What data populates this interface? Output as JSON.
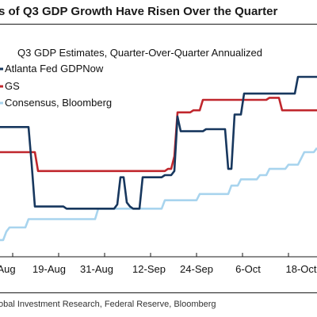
{
  "header": {
    "title": "s of Q3 GDP Growth Have Risen Over the Quarter"
  },
  "footer": {
    "source": "obal Investment Research, Federal Reserve, Bloomberg"
  },
  "chart_data": {
    "type": "line",
    "title": "Q3 GDP Estimates, Quarter-Over-Quarter Annualized",
    "x_tick_labels": [
      "Aug",
      "19-Aug",
      "31-Aug",
      "12-Sep",
      "24-Sep",
      "6-Oct",
      "18-Oct"
    ],
    "x": [
      0,
      4,
      8,
      12,
      16,
      20,
      24,
      28,
      32,
      36,
      40,
      44,
      48,
      52,
      56,
      60,
      64,
      68,
      72,
      76,
      80,
      84,
      88,
      92,
      96,
      100,
      104,
      108,
      112,
      116,
      120,
      124,
      128,
      132,
      136,
      140,
      144,
      148,
      152,
      156,
      160,
      164,
      168,
      172,
      176,
      180,
      184,
      188,
      192,
      196,
      200,
      204,
      208,
      212,
      216,
      220,
      224,
      228,
      232,
      236,
      240,
      244,
      248,
      252,
      256,
      260,
      264,
      268,
      272,
      276,
      280,
      284,
      288,
      292,
      296,
      300,
      304,
      308,
      312,
      316,
      320,
      324,
      328,
      332,
      336,
      340,
      344,
      348,
      352,
      356,
      360,
      364,
      368,
      372,
      376,
      380,
      384,
      388,
      392,
      396,
      400
    ],
    "ylim": [
      0,
      10
    ],
    "grid": false,
    "legend_position": "top-left",
    "series": [
      {
        "name": "Atlanta Fed GDPNow",
        "color": "#17375e",
        "values": [
          6.2,
          6.2,
          6.2,
          6.2,
          6.2,
          6.2,
          6.2,
          6.2,
          6.2,
          6.2,
          4.4,
          2.4,
          2.4,
          2.4,
          2.4,
          2.4,
          2.4,
          2.4,
          2.4,
          2.4,
          2.4,
          2.3,
          2.3,
          2.3,
          2.3,
          2.3,
          2.3,
          2.3,
          2.3,
          2.3,
          2.3,
          2.3,
          2.3,
          2.3,
          2.3,
          2.3,
          2.3,
          2.5,
          3.8,
          3.8,
          2.6,
          2.4,
          2.3,
          2.3,
          2.3,
          3.8,
          3.8,
          3.8,
          3.8,
          3.8,
          3.8,
          3.8,
          3.9,
          3.9,
          3.9,
          4.1,
          6.7,
          6.0,
          6.0,
          6.0,
          6.0,
          6.0,
          6.0,
          6.0,
          6.0,
          6.1,
          6.1,
          6.1,
          6.1,
          6.1,
          6.1,
          6.1,
          4.2,
          4.2,
          6.8,
          6.8,
          6.8,
          7.8,
          7.8,
          7.8,
          7.8,
          7.8,
          7.8,
          7.8,
          7.8,
          7.8,
          7.8,
          7.8,
          7.8,
          7.8,
          7.8,
          7.8,
          7.8,
          7.8,
          8.6,
          8.6,
          8.6,
          8.6,
          8.6,
          8.6,
          8.6
        ]
      },
      {
        "name": "GS",
        "color": "#c0272d",
        "values": [
          5.0,
          5.0,
          5.0,
          5.0,
          5.0,
          5.0,
          5.0,
          5.0,
          5.0,
          5.0,
          5.0,
          5.0,
          4.1,
          4.1,
          4.1,
          4.1,
          4.1,
          4.1,
          4.1,
          4.1,
          4.1,
          4.1,
          4.1,
          4.1,
          4.1,
          4.1,
          4.1,
          4.1,
          4.1,
          4.1,
          4.1,
          4.1,
          4.1,
          4.1,
          4.1,
          4.1,
          4.1,
          4.1,
          4.1,
          4.1,
          4.1,
          4.1,
          4.1,
          4.1,
          4.1,
          4.1,
          4.1,
          4.1,
          4.1,
          4.1,
          4.1,
          4.1,
          4.1,
          4.2,
          4.2,
          4.8,
          6.9,
          6.9,
          6.9,
          6.9,
          6.9,
          7.0,
          7.0,
          7.0,
          7.5,
          7.5,
          7.5,
          7.5,
          7.5,
          7.5,
          7.5,
          7.5,
          7.5,
          7.5,
          7.5,
          7.5,
          7.5,
          7.5,
          7.5,
          7.5,
          7.5,
          7.5,
          7.5,
          7.5,
          7.5,
          7.6,
          7.6,
          7.6,
          7.6,
          7.0,
          7.0,
          7.0,
          7.0,
          7.0,
          7.0,
          7.0,
          7.0,
          7.0,
          7.0,
          7.0,
          7.0
        ]
      },
      {
        "name": "Consensus, Bloomberg",
        "color": "#a8d4ee",
        "values": [
          0.8,
          0.8,
          1.2,
          1.4,
          1.4,
          1.4,
          1.4,
          1.4,
          1.4,
          1.8,
          1.8,
          1.8,
          1.8,
          1.8,
          1.8,
          1.8,
          1.8,
          1.8,
          1.8,
          1.8,
          1.8,
          1.8,
          1.8,
          1.8,
          1.8,
          1.8,
          1.8,
          1.8,
          1.8,
          1.8,
          1.8,
          2.3,
          2.3,
          2.3,
          2.3,
          2.3,
          2.3,
          2.3,
          2.3,
          2.3,
          2.3,
          2.3,
          2.3,
          2.3,
          2.3,
          2.3,
          2.3,
          2.3,
          2.3,
          2.3,
          2.3,
          2.3,
          2.7,
          2.7,
          2.7,
          2.7,
          2.7,
          2.7,
          2.7,
          2.7,
          2.7,
          2.7,
          2.7,
          3.0,
          3.0,
          3.0,
          3.0,
          3.0,
          3.0,
          3.0,
          3.0,
          3.0,
          3.0,
          3.4,
          3.4,
          3.4,
          3.7,
          3.7,
          3.7,
          3.7,
          3.7,
          3.7,
          3.9,
          3.9,
          3.9,
          4.2,
          4.2,
          4.2,
          4.2,
          4.2,
          4.2,
          4.4,
          4.4,
          4.4,
          4.4,
          4.7,
          5.0,
          5.0,
          5.0,
          5.0,
          5.2
        ]
      }
    ]
  }
}
